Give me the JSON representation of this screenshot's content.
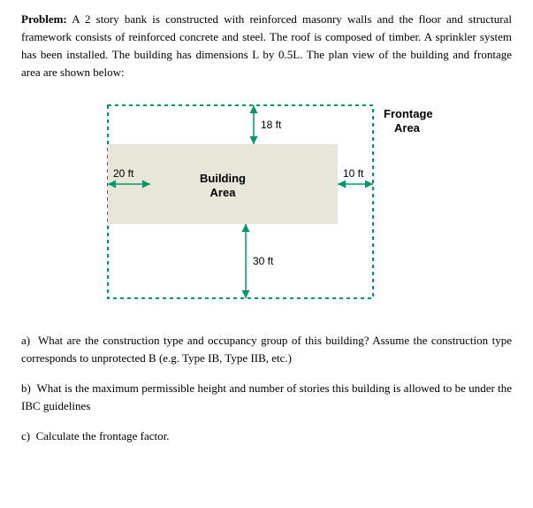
{
  "problem": {
    "label": "Problem:",
    "text": " A 2 story bank is constructed with reinforced masonry walls and the floor and structural framework consists of reinforced concrete and steel. The roof is composed of timber. A sprinkler system has been installed. The building has dimensions L by 0.5L. The plan view of the building and frontage area are shown below:"
  },
  "diagram": {
    "border_color": "#009966",
    "building_fill": "#e8e6d8",
    "text_color": "#000000",
    "dim_top": "18 ft",
    "dim_left": "20 ft",
    "dim_right": "10 ft",
    "dim_bottom": "30 ft",
    "building_label1": "Building",
    "building_label2": "Area",
    "frontage_label1": "Frontage",
    "frontage_label2": "Area",
    "dash": "4,4"
  },
  "questions": {
    "a": {
      "label": "a)",
      "text": "What are the construction type and occupancy group of this building? Assume the construction type corresponds to unprotected B (e.g. Type IB, Type IIB, etc.)"
    },
    "b": {
      "label": "b)",
      "text": "What is the maximum permissible height and number of stories this building is allowed to be under the IBC guidelines"
    },
    "c": {
      "label": "c)",
      "text": "Calculate the frontage factor."
    }
  }
}
